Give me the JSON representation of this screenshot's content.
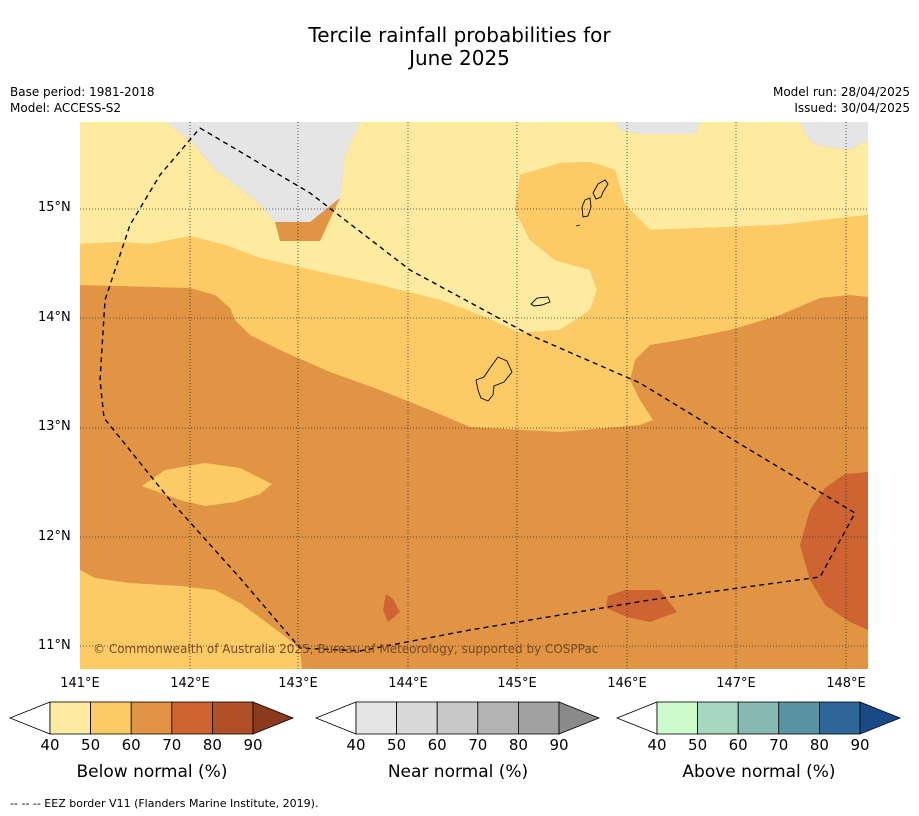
{
  "header": {
    "title_line1": "Tercile rainfall probabilities for",
    "title_line2": "June 2025",
    "base_period": "Base period: 1981-2018",
    "model": "Model: ACCESS-S2",
    "model_run": "Model run: 28/04/2025",
    "issued": "Issued: 30/04/2025"
  },
  "map": {
    "lat_labels": [
      "15°N",
      "14°N",
      "13°N",
      "12°N",
      "11°N"
    ],
    "lon_labels": [
      "141°E",
      "142°E",
      "143°E",
      "144°E",
      "145°E",
      "146°E",
      "147°E",
      "148°E"
    ],
    "copyright": "© Commonwealth of Australia 2025, Bureau of Meteorology, supported by COSPPac",
    "colors": {
      "land_bg": "#e5e5e5",
      "below_40_50": "#feeba0",
      "below_50_60": "#fdcb66",
      "below_60_70": "#e09444",
      "below_70_80": "#cd6432"
    }
  },
  "colorbars": [
    {
      "id": "below",
      "title": "Below normal (%)",
      "ticks": [
        "40",
        "50",
        "60",
        "70",
        "80",
        "90"
      ],
      "colors": [
        "#feeba0",
        "#fdcb66",
        "#e09444",
        "#cd6432",
        "#b04f28",
        "#8b3a1e"
      ]
    },
    {
      "id": "near",
      "title": "Near normal (%)",
      "ticks": [
        "40",
        "50",
        "60",
        "70",
        "80",
        "90"
      ],
      "colors": [
        "#e5e5e5",
        "#d8d8d8",
        "#c8c8c8",
        "#b4b4b4",
        "#a0a0a0",
        "#8a8a8a"
      ]
    },
    {
      "id": "above",
      "title": "Above normal (%)",
      "ticks": [
        "40",
        "50",
        "60",
        "70",
        "80",
        "90"
      ],
      "colors": [
        "#cdfccc",
        "#a6d8c0",
        "#84b8b0",
        "#5b93a2",
        "#2f6699",
        "#194987"
      ]
    }
  ],
  "footnote": "-- -- -- EEZ border V11 (Flanders Marine Institute, 2019)."
}
